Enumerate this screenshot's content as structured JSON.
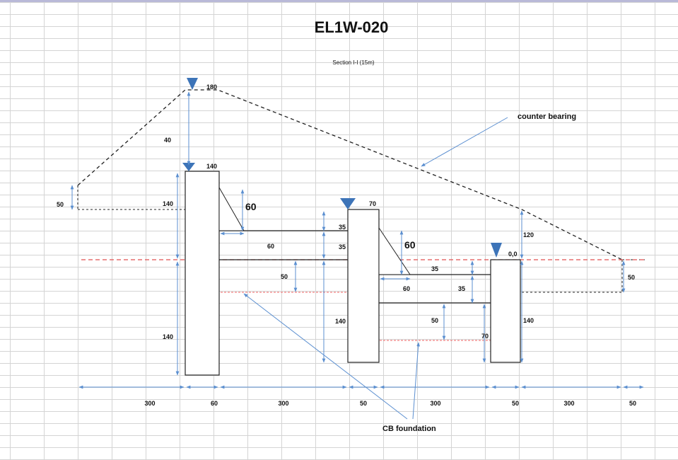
{
  "title": "EL1W-020",
  "subtitle": "Section I-I (15m)",
  "callouts": {
    "counter_bearing": "counter  bearing",
    "cb_foundation": "CB foundation"
  },
  "level_marks": {
    "top_180": "180",
    "tier1_140": "140",
    "tier2_70": "70",
    "tier3_zero": "0,0"
  },
  "vertical_dims": {
    "d40": "40",
    "d140_upper": "140",
    "d140_lower": "140",
    "d50_left": "50",
    "d60_slope1": "60",
    "d35_a": "35",
    "d35_b": "35",
    "d50_fnd1": "50",
    "d140_mid": "140",
    "d60_slope2": "60",
    "d35_c": "35",
    "d35_d": "35",
    "d50_fnd2": "50",
    "d70": "70",
    "d120": "120",
    "d140_right": "140",
    "d50_right": "50"
  },
  "horizontal_dims": {
    "h60_upper": "60",
    "h60_lower": "60"
  },
  "bottom_dims": [
    "300",
    "60",
    "300",
    "50",
    "300",
    "50",
    "300",
    "50"
  ],
  "colors": {
    "marker": "#3d74b8",
    "dim_line": "#5b8fd0",
    "ground_line": "#e05050",
    "foundation_line": "#f08080",
    "outline": "#222222",
    "dashed": "#222222"
  }
}
